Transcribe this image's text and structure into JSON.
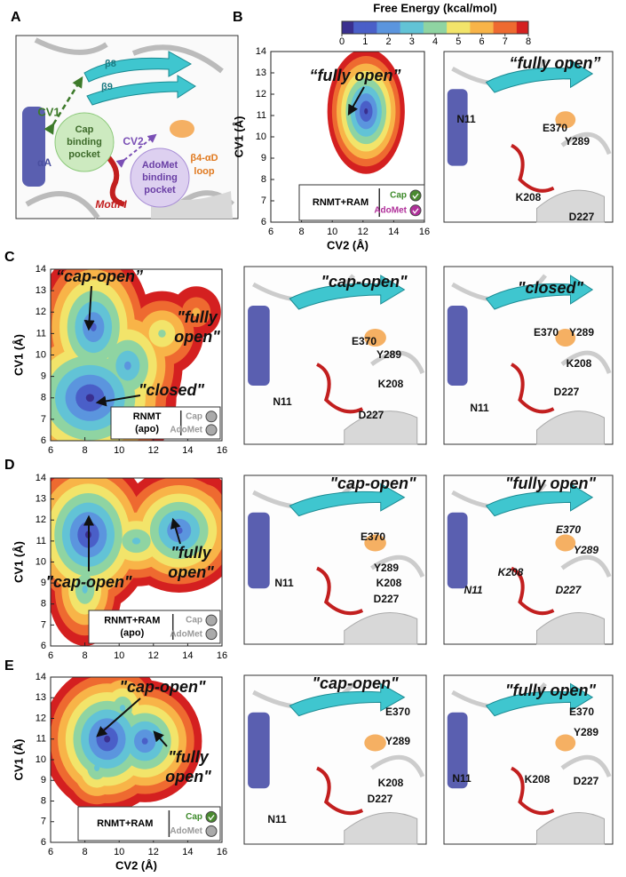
{
  "panel_a": {
    "label": "A",
    "beta8": "β8",
    "beta9": "β9",
    "cv1": "CV1",
    "cap_pocket": [
      "Cap",
      "binding",
      "pocket"
    ],
    "loop": [
      "β4-αD",
      "loop"
    ],
    "cv2": "CV2",
    "alpha_a": "αA",
    "adomet_pocket": [
      "AdoMet",
      "binding",
      "pocket"
    ],
    "motif": "Motif I"
  },
  "colorbar": {
    "title": "Free Energy (kcal/mol)",
    "ticks": [
      0,
      1,
      2,
      3,
      4,
      5,
      6,
      7,
      8
    ]
  },
  "plots": [
    {
      "label": "B",
      "ylabel": "CV1 (Å)",
      "xlabel": "CV2 (Å)",
      "xlim": [
        6,
        16
      ],
      "ylim": [
        6,
        14
      ],
      "xticks": [
        6,
        8,
        10,
        12,
        14,
        16
      ],
      "yticks": [
        6,
        7,
        8,
        9,
        10,
        11,
        12,
        13,
        14
      ],
      "annotations": [
        [
          "“fully open”"
        ]
      ],
      "legend": {
        "system": [
          "RNMT+RAM"
        ],
        "ligands": [
          "Cap",
          "AdoMet"
        ]
      },
      "structures": [
        {
          "title": "“fully open”",
          "residues": [
            "N11",
            "E370",
            "Y289",
            "K208",
            "D227"
          ]
        }
      ]
    },
    {
      "label": "C",
      "ylabel": "CV1 (Å)",
      "xlim": [
        6,
        16
      ],
      "ylim": [
        6,
        14
      ],
      "xticks": [
        6,
        8,
        10,
        12,
        14,
        16
      ],
      "yticks": [
        6,
        7,
        8,
        9,
        10,
        11,
        12,
        13,
        14
      ],
      "annotations": [
        [
          "“cap-open”"
        ],
        [
          "\"fully",
          "open\""
        ],
        [
          "\"closed\""
        ]
      ],
      "legend": {
        "system": [
          "RNMT",
          "(apo)"
        ],
        "ligands": [
          "Cap",
          "AdoMet"
        ]
      },
      "structures": [
        {
          "title": "\"cap-open\"",
          "residues": [
            "E370",
            "Y289",
            "K208",
            "N11",
            "D227"
          ]
        },
        {
          "title": "\"closed\"",
          "residues": [
            "E370",
            "Y289",
            "K208",
            "N11",
            "D227"
          ]
        }
      ]
    },
    {
      "label": "D",
      "ylabel": "CV1 (Å)",
      "xlim": [
        6,
        16
      ],
      "ylim": [
        6,
        14
      ],
      "xticks": [
        6,
        8,
        10,
        12,
        14,
        16
      ],
      "yticks": [
        6,
        7,
        8,
        9,
        10,
        11,
        12,
        13,
        14
      ],
      "annotations": [
        [
          "\"cap-open\""
        ],
        [
          "\"fully",
          "open\""
        ]
      ],
      "legend": {
        "system": [
          "RNMT+RAM",
          "(apo)"
        ],
        "ligands": [
          "Cap",
          "AdoMet"
        ]
      },
      "structures": [
        {
          "title": "\"cap-open\"",
          "residues": [
            "E370",
            "Y289",
            "N11",
            "K208",
            "D227"
          ]
        },
        {
          "title": "\"fully open\"",
          "residues": [
            "E370",
            "Y289",
            "K208",
            "N11",
            "D227"
          ]
        }
      ]
    },
    {
      "label": "E",
      "ylabel": "CV1 (Å)",
      "xlabel": "CV2 (Å)",
      "xlim": [
        6,
        16
      ],
      "ylim": [
        6,
        14
      ],
      "xticks": [
        6,
        8,
        10,
        12,
        14,
        16
      ],
      "yticks": [
        6,
        7,
        8,
        9,
        10,
        11,
        12,
        13,
        14
      ],
      "annotations": [
        [
          "\"cap-open\""
        ],
        [
          "\"fully",
          "open\""
        ]
      ],
      "legend": {
        "system": [
          "RNMT+RAM"
        ],
        "ligands": [
          "Cap",
          "AdoMet"
        ]
      },
      "structures": [
        {
          "title": "\"cap-open\"",
          "residues": [
            "E370",
            "Y289",
            "K208",
            "D227",
            "N11"
          ]
        },
        {
          "title": "\"fully open\"",
          "residues": [
            "E370",
            "Y289",
            "N11",
            "K208",
            "D227"
          ]
        }
      ]
    }
  ]
}
